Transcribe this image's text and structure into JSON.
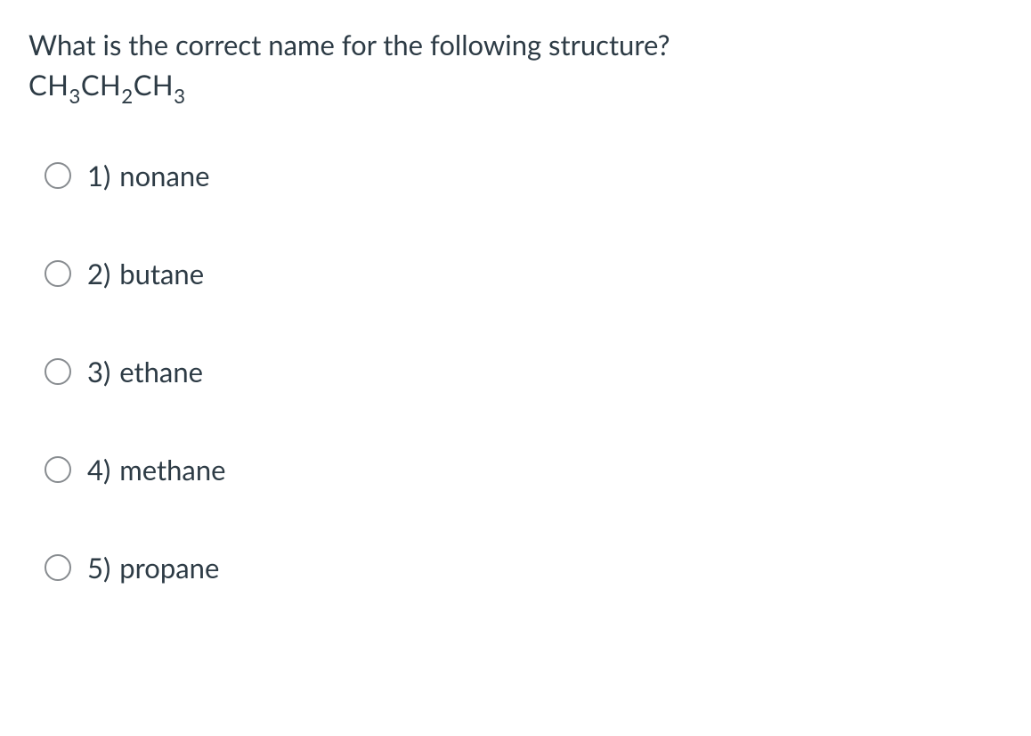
{
  "question": {
    "prompt": "What is the correct name for the following structure?",
    "formula_segments": [
      "CH",
      "3",
      "CH",
      "2",
      "CH",
      "3"
    ]
  },
  "options": [
    {
      "number": "1)",
      "text": "nonane"
    },
    {
      "number": "2)",
      "text": "butane"
    },
    {
      "number": "3)",
      "text": "ethane"
    },
    {
      "number": "4)",
      "text": "methane"
    },
    {
      "number": "5)",
      "text": "propane"
    }
  ],
  "colors": {
    "text": "#2d3b45",
    "radio_border": "#888c90",
    "background": "#ffffff"
  },
  "typography": {
    "base_font_size": 31,
    "font_family": "-apple-system, BlinkMacSystemFont, Segoe UI, Lato, Helvetica, Arial, sans-serif"
  }
}
